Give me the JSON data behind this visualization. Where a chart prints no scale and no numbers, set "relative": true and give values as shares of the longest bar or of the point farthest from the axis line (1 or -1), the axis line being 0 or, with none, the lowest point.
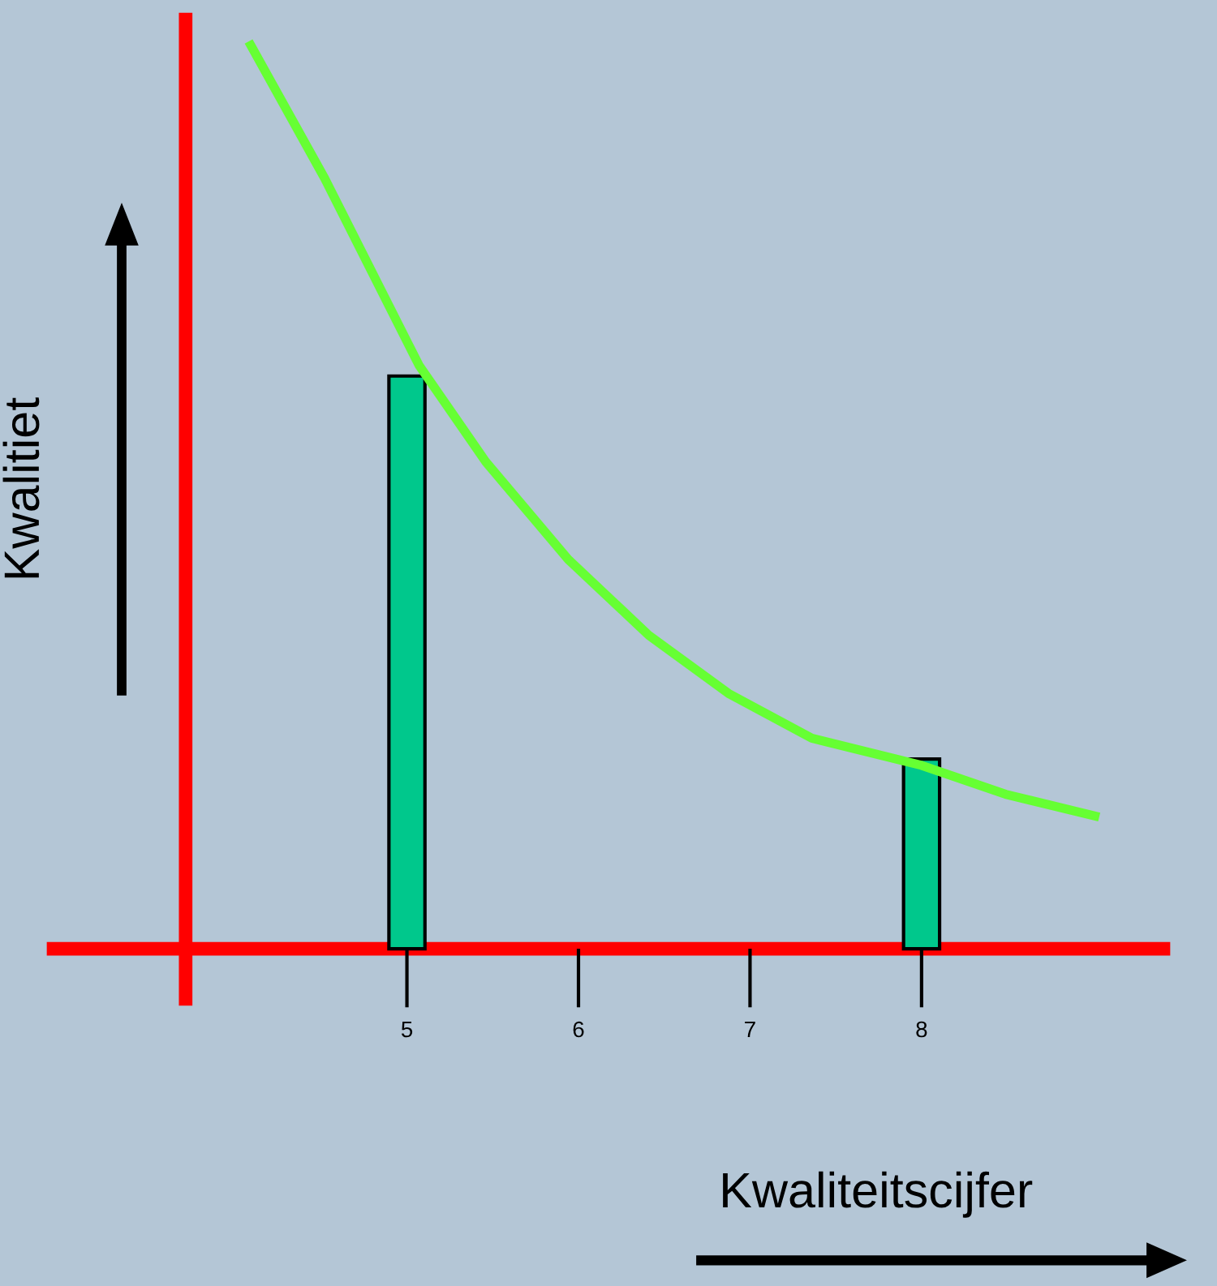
{
  "chart_data": {
    "type": "bar",
    "relative": true,
    "xlabel": "Kwaliteitscijfer",
    "ylabel": "Kwalitiet",
    "xlim": [
      2.94,
      9.41
    ],
    "ref_lines": [
      {
        "axis": "x",
        "value": 3.71,
        "color": "#ff0000"
      }
    ],
    "xticks": [
      5,
      6,
      7,
      8
    ],
    "series": [
      {
        "color": "#00c88c",
        "x": [
          5,
          8
        ],
        "values": [
          0.634,
          0.21
        ]
      },
      {
        "type": "line",
        "color": "#66ff33",
        "x": [
          4.09,
          4.52,
          5.07,
          5.46,
          5.94,
          6.41,
          6.88,
          7.36,
          8.0,
          8.49,
          9.01
        ],
        "values": [
          1,
          0.853,
          0.646,
          0.539,
          0.431,
          0.347,
          0.282,
          0.233,
          0.203,
          0.171,
          0.147
        ]
      }
    ]
  }
}
